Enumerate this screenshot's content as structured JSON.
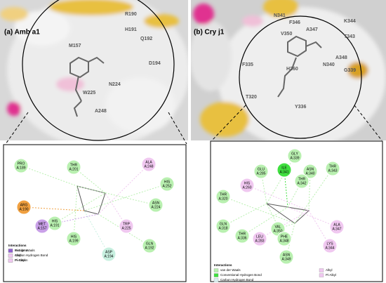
{
  "panels": [
    {
      "label": "(a) Amb a1",
      "surface_labels": [
        "R190",
        "H191",
        "Q192",
        "M157",
        "D194",
        "W225",
        "N224",
        "A248"
      ],
      "residues": [
        {
          "name": "PRO",
          "id": "A:189",
          "color": "#b9f0b0"
        },
        {
          "name": "THR",
          "id": "A:201",
          "color": "#b9f0b0"
        },
        {
          "name": "ALA",
          "id": "A:248",
          "color": "#f0c8f0"
        },
        {
          "name": "HIS",
          "id": "A:252",
          "color": "#b9f0b0"
        },
        {
          "name": "ASN",
          "id": "A:224",
          "color": "#b9f0b0"
        },
        {
          "name": "TRP",
          "id": "A:225",
          "color": "#f0c8f0"
        },
        {
          "name": "GLN",
          "id": "A:192",
          "color": "#b9f0b0"
        },
        {
          "name": "ASP",
          "id": "A:194",
          "color": "#c8f0e0"
        },
        {
          "name": "HIS",
          "id": "A:199",
          "color": "#b9f0b0"
        },
        {
          "name": "HIS",
          "id": "A:191",
          "color": "#b9f0b0"
        },
        {
          "name": "MET",
          "id": "A:157",
          "color": "#c9a0e8"
        },
        {
          "name": "ARG",
          "id": "A:190",
          "color": "#f0a040"
        }
      ],
      "legend_title": "Interactions",
      "legend": [
        {
          "name": "van der Waals",
          "color": "#b9f0b0"
        },
        {
          "name": "Carbon Hydrogen Bond",
          "color": "#d8f0f0"
        },
        {
          "name": "Pi-Cation",
          "color": "#f0a040"
        },
        {
          "name": "Pi-Sigma",
          "color": "#9060d0"
        },
        {
          "name": "Alkyl",
          "color": "#f0c8f0"
        },
        {
          "name": "Pi-Alkyl",
          "color": "#f0c8f0"
        }
      ]
    },
    {
      "label": "(b) Cry j1",
      "surface_labels": [
        "N341",
        "V350",
        "F346",
        "A347",
        "K344",
        "T343",
        "F335",
        "N340",
        "G339",
        "T320",
        "H260",
        "Y336",
        "A348"
      ],
      "residues": [
        {
          "name": "GLY",
          "id": "A:339",
          "color": "#b9f0b0"
        },
        {
          "name": "ILE",
          "id": "A:341",
          "color": "#40e040"
        },
        {
          "name": "ASN",
          "id": "A:340",
          "color": "#b9f0b0"
        },
        {
          "name": "THR",
          "id": "A:343",
          "color": "#b9f0b0"
        },
        {
          "name": "GLU",
          "id": "A:285",
          "color": "#b9f0b0"
        },
        {
          "name": "THR",
          "id": "A:342",
          "color": "#b9f0b0"
        },
        {
          "name": "HIS",
          "id": "A:260",
          "color": "#f0c8f0"
        },
        {
          "name": "THR",
          "id": "A:320",
          "color": "#b9f0b0"
        },
        {
          "name": "GLN",
          "id": "A:318",
          "color": "#b9f0b0"
        },
        {
          "name": "THR",
          "id": "A:336",
          "color": "#b9f0b0"
        },
        {
          "name": "LEU",
          "id": "A:283",
          "color": "#f0c8f0"
        },
        {
          "name": "VAL",
          "id": "A:350",
          "color": "#b9f0b0"
        },
        {
          "name": "PHE",
          "id": "A:348",
          "color": "#b9f0b0"
        },
        {
          "name": "ALA",
          "id": "A:347",
          "color": "#f0c8f0"
        },
        {
          "name": "LYS",
          "id": "A:344",
          "color": "#f0c8f0"
        },
        {
          "name": "ASN",
          "id": "A:349",
          "color": "#b9f0b0"
        }
      ],
      "legend_title": "Interactions",
      "legend": [
        {
          "name": "van der Waals",
          "color": "#b9f0b0"
        },
        {
          "name": "Conventional Hydrogen Bond",
          "color": "#40e040"
        },
        {
          "name": "Carbon Hydrogen Bond",
          "color": "#d8f0f0"
        },
        {
          "name": "Alkyl",
          "color": "#f0c8f0"
        },
        {
          "name": "Pi-Alkyl",
          "color": "#f0c8f0"
        }
      ]
    }
  ]
}
